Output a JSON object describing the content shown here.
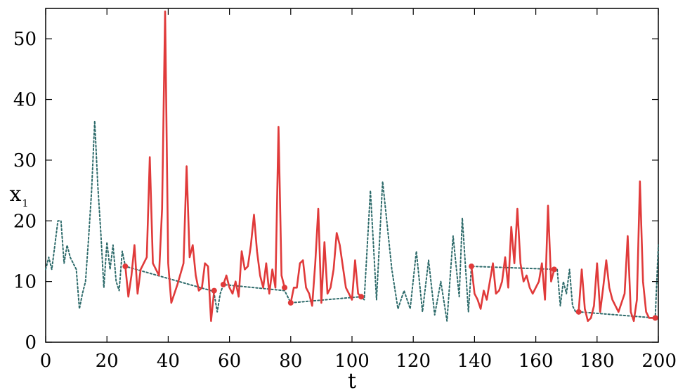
{
  "chart_data": {
    "type": "line",
    "title": "",
    "xlabel": "t",
    "ylabel": "x",
    "ylabel_subscript": "1",
    "xlim": [
      0,
      200
    ],
    "ylim": [
      0,
      55
    ],
    "x_ticks": [
      0,
      20,
      40,
      60,
      80,
      100,
      120,
      140,
      160,
      180,
      200
    ],
    "y_ticks": [
      0,
      10,
      20,
      30,
      40,
      50
    ],
    "grid": false,
    "colors": {
      "dotted": "#2e6b6b",
      "solid": "#e03a3a",
      "axis": "#000000"
    },
    "series": [
      {
        "style": "dotted",
        "points": [
          [
            0,
            12
          ],
          [
            1,
            14
          ],
          [
            2,
            12
          ],
          [
            3,
            16
          ],
          [
            4,
            20
          ],
          [
            5,
            20
          ],
          [
            6,
            13
          ],
          [
            7,
            16
          ],
          [
            8,
            14
          ],
          [
            9,
            13
          ],
          [
            10,
            12
          ],
          [
            11,
            5.5
          ],
          [
            12,
            8
          ],
          [
            13,
            10
          ],
          [
            14,
            17
          ],
          [
            15,
            25
          ],
          [
            16,
            36.5
          ],
          [
            17,
            26
          ],
          [
            18,
            18
          ],
          [
            19,
            9
          ],
          [
            20,
            16.5
          ],
          [
            21,
            12
          ],
          [
            22,
            16
          ],
          [
            23,
            10
          ],
          [
            24,
            8.5
          ],
          [
            25,
            15
          ],
          [
            26,
            12.5
          ],
          [
            54,
            8.5
          ],
          [
            55,
            8
          ],
          [
            56,
            5
          ],
          [
            57,
            8
          ],
          [
            58,
            9.5
          ],
          [
            78,
            8.5
          ],
          [
            80,
            6.5
          ],
          [
            103,
            7.5
          ],
          [
            104,
            7
          ],
          [
            106,
            25
          ],
          [
            108,
            7
          ],
          [
            110,
            26.5
          ],
          [
            113,
            12
          ],
          [
            115,
            5.5
          ],
          [
            117,
            8.5
          ],
          [
            119,
            5.5
          ],
          [
            121,
            15
          ],
          [
            123,
            5
          ],
          [
            125,
            13.5
          ],
          [
            127,
            4.5
          ],
          [
            129,
            10
          ],
          [
            131,
            3.5
          ],
          [
            133,
            17.5
          ],
          [
            135,
            7.5
          ],
          [
            136,
            20.5
          ],
          [
            138,
            5
          ],
          [
            139,
            12.5
          ],
          [
            167,
            12
          ],
          [
            168,
            6
          ],
          [
            169,
            10
          ],
          [
            170,
            8
          ],
          [
            171,
            12
          ],
          [
            172,
            6
          ],
          [
            173,
            5
          ],
          [
            174,
            5
          ],
          [
            199,
            4
          ],
          [
            200,
            16
          ]
        ]
      },
      {
        "style": "solid",
        "points": [
          [
            26,
            12.5
          ],
          [
            27,
            7.5
          ],
          [
            28,
            11
          ],
          [
            29,
            16
          ],
          [
            30,
            8
          ],
          [
            31,
            12
          ],
          [
            33,
            14
          ],
          [
            34,
            30.5
          ],
          [
            35,
            13
          ],
          [
            36,
            12
          ],
          [
            37,
            11
          ],
          [
            38,
            22
          ],
          [
            39,
            54.5
          ],
          [
            40,
            13
          ],
          [
            41,
            6.5
          ],
          [
            43,
            9.5
          ],
          [
            45,
            13
          ],
          [
            46,
            29
          ],
          [
            47,
            14
          ],
          [
            48,
            16
          ],
          [
            49,
            11
          ],
          [
            50,
            8.5
          ],
          [
            51,
            9
          ],
          [
            52,
            13
          ],
          [
            53,
            12.5
          ],
          [
            54,
            3.5
          ],
          [
            55,
            8.5
          ]
        ]
      },
      {
        "style": "solid",
        "points": [
          [
            58,
            9.5
          ],
          [
            59,
            11
          ],
          [
            60,
            9
          ],
          [
            61,
            8
          ],
          [
            62,
            10
          ],
          [
            63,
            7.5
          ],
          [
            64,
            15
          ],
          [
            65,
            12
          ],
          [
            66,
            12.5
          ],
          [
            67,
            16
          ],
          [
            68,
            21
          ],
          [
            69,
            15
          ],
          [
            70,
            11
          ],
          [
            71,
            9
          ],
          [
            72,
            13
          ],
          [
            73,
            8
          ],
          [
            74,
            12
          ],
          [
            75,
            9
          ],
          [
            76,
            35.5
          ],
          [
            77,
            11
          ],
          [
            78,
            9
          ]
        ]
      },
      {
        "style": "solid",
        "points": [
          [
            80,
            6.5
          ],
          [
            81,
            9
          ],
          [
            82,
            9
          ],
          [
            83,
            13
          ],
          [
            84,
            13.5
          ],
          [
            85,
            9
          ],
          [
            86,
            8
          ],
          [
            87,
            6
          ],
          [
            88,
            13
          ],
          [
            89,
            22
          ],
          [
            90,
            6.5
          ],
          [
            91,
            16.5
          ],
          [
            92,
            8
          ],
          [
            93,
            9
          ],
          [
            94,
            12
          ],
          [
            95,
            18
          ],
          [
            96,
            16
          ],
          [
            98,
            9
          ],
          [
            100,
            7
          ],
          [
            101,
            13.5
          ],
          [
            102,
            8
          ],
          [
            103,
            7.5
          ]
        ]
      },
      {
        "style": "solid",
        "points": [
          [
            139,
            12.5
          ],
          [
            140,
            8
          ],
          [
            141,
            7
          ],
          [
            142,
            5.5
          ],
          [
            143,
            8.5
          ],
          [
            144,
            7
          ],
          [
            146,
            13
          ],
          [
            147,
            8
          ],
          [
            148,
            8.5
          ],
          [
            149,
            10
          ],
          [
            150,
            14
          ],
          [
            151,
            9
          ],
          [
            152,
            19
          ],
          [
            153,
            13
          ],
          [
            154,
            22
          ],
          [
            155,
            13
          ],
          [
            156,
            10
          ],
          [
            157,
            11
          ],
          [
            158,
            9
          ],
          [
            159,
            8
          ],
          [
            161,
            10
          ],
          [
            162,
            13
          ],
          [
            163,
            7
          ],
          [
            164,
            22.5
          ],
          [
            165,
            10
          ],
          [
            166,
            12
          ]
        ]
      },
      {
        "style": "solid",
        "points": [
          [
            174,
            5
          ],
          [
            175,
            12
          ],
          [
            176,
            5.5
          ],
          [
            177,
            3.5
          ],
          [
            178,
            4
          ],
          [
            179,
            6
          ],
          [
            180,
            13
          ],
          [
            181,
            5
          ],
          [
            182,
            9
          ],
          [
            183,
            13.5
          ],
          [
            184,
            9
          ],
          [
            185,
            7
          ],
          [
            187,
            5
          ],
          [
            189,
            8
          ],
          [
            190,
            17.5
          ],
          [
            191,
            5
          ],
          [
            192,
            3.5
          ],
          [
            193,
            7
          ],
          [
            194,
            26.5
          ],
          [
            195,
            10
          ],
          [
            196,
            5
          ],
          [
            197,
            4
          ],
          [
            199,
            4
          ]
        ]
      }
    ],
    "markers": [
      [
        26,
        12.5
      ],
      [
        55,
        8.5
      ],
      [
        58,
        9.5
      ],
      [
        78,
        9
      ],
      [
        80,
        6.5
      ],
      [
        103,
        7.5
      ],
      [
        139,
        12.5
      ],
      [
        166,
        12
      ],
      [
        174,
        5
      ],
      [
        199,
        4
      ]
    ]
  }
}
